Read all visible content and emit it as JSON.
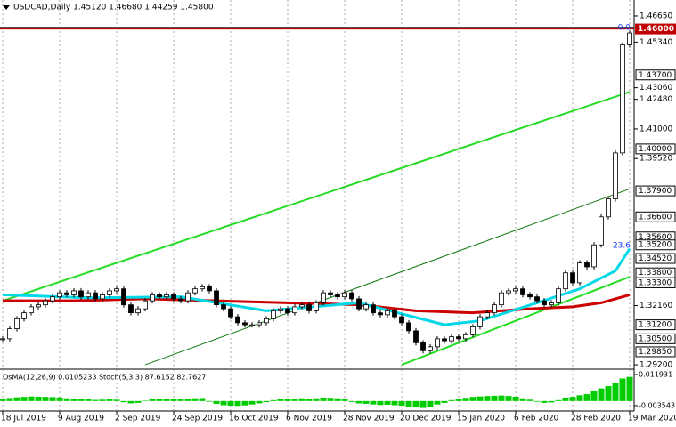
{
  "chart_data": {
    "type": "candlestick",
    "title": "USDCAD,Daily  1.45120 1.46680 1.44259 1.45800",
    "categories": [
      "18 Jul 2019",
      null,
      null,
      null,
      null,
      null,
      null,
      null,
      "9 Aug 2019",
      null,
      null,
      null,
      null,
      null,
      null,
      null,
      "2 Sep 2019",
      null,
      null,
      null,
      null,
      null,
      null,
      null,
      "24 Sep 2019",
      null,
      null,
      null,
      null,
      null,
      null,
      null,
      "16 Oct 2019",
      null,
      null,
      null,
      null,
      null,
      null,
      null,
      "6 Nov 2019",
      null,
      null,
      null,
      null,
      null,
      null,
      null,
      "28 Nov 2019",
      null,
      null,
      null,
      null,
      null,
      null,
      null,
      "20 Dec 2019",
      null,
      null,
      null,
      null,
      null,
      null,
      null,
      "15 Jan 2020",
      null,
      null,
      null,
      null,
      null,
      null,
      null,
      "6 Feb 2020",
      null,
      null,
      null,
      null,
      null,
      null,
      null,
      "28 Feb 2020",
      null,
      null,
      null,
      null,
      null,
      null,
      null,
      "19 Mar 2020"
    ],
    "values": [
      1.305,
      1.31,
      1.315,
      1.318,
      1.321,
      1.322,
      1.324,
      1.326,
      1.328,
      1.327,
      1.329,
      1.326,
      1.328,
      1.325,
      1.327,
      1.329,
      1.33,
      1.322,
      1.318,
      1.32,
      1.324,
      1.327,
      1.326,
      1.327,
      1.325,
      1.324,
      1.328,
      1.33,
      1.331,
      1.329,
      1.322,
      1.32,
      1.316,
      1.313,
      1.312,
      1.312,
      1.313,
      1.315,
      1.319,
      1.32,
      1.318,
      1.321,
      1.322,
      1.319,
      1.323,
      1.328,
      1.327,
      1.326,
      1.328,
      1.325,
      1.32,
      1.322,
      1.318,
      1.317,
      1.319,
      1.316,
      1.313,
      1.309,
      1.303,
      1.299,
      1.301,
      1.305,
      1.304,
      1.306,
      1.305,
      1.307,
      1.311,
      1.316,
      1.318,
      1.322,
      1.328,
      1.329,
      1.33,
      1.327,
      1.326,
      1.324,
      1.322,
      1.323,
      1.33,
      1.338,
      1.333,
      1.343,
      1.341,
      1.352,
      1.366,
      1.375,
      1.398,
      1.452,
      1.458
    ],
    "ylim": [
      1.2898,
      1.4745
    ],
    "yticks": [
      {
        "value": 1.4665,
        "label": "1.46650"
      },
      {
        "value": 1.4534,
        "label": "1.45340"
      },
      {
        "value": 1.4306,
        "label": "1.43060"
      },
      {
        "value": 1.4248,
        "label": "1.42480"
      },
      {
        "value": 1.41,
        "label": "1.41000"
      },
      {
        "value": 1.3952,
        "label": "1.39520"
      },
      {
        "value": 1.3216,
        "label": "1.32160"
      },
      {
        "value": 1.292,
        "label": "1.29200"
      }
    ],
    "levels": [
      {
        "value": 1.437,
        "label": "1.43700"
      },
      {
        "value": 1.4,
        "label": "1.40000"
      },
      {
        "value": 1.379,
        "label": "1.37900"
      },
      {
        "value": 1.366,
        "label": "1.36600"
      },
      {
        "value": 1.356,
        "label": "1.35600"
      },
      {
        "value": 1.352,
        "label": "1.35200"
      },
      {
        "value": 1.3452,
        "label": "1.34520"
      },
      {
        "value": 1.338,
        "label": "1.33800"
      },
      {
        "value": 1.333,
        "label": "1.33300"
      },
      {
        "value": 1.312,
        "label": "1.31200"
      },
      {
        "value": 1.305,
        "label": "1.30500"
      },
      {
        "value": 1.2985,
        "label": "1.29850"
      }
    ],
    "current_level": {
      "value": 1.46,
      "label": "1.46000",
      "color": "#c00000"
    },
    "fib_labels": [
      {
        "value": 1.458,
        "label": "0.0"
      },
      {
        "value": 1.349,
        "label": "23.6"
      }
    ],
    "overlays": [
      {
        "color": "#cc0000",
        "x": [
          0,
          10,
          20,
          30,
          40,
          50,
          58,
          66,
          74,
          80,
          84,
          88
        ],
        "values": [
          1.324,
          1.324,
          1.325,
          1.324,
          1.323,
          1.322,
          1.319,
          1.318,
          1.32,
          1.321,
          1.323,
          1.327
        ]
      },
      {
        "color": "#00d8e8",
        "x": [
          0,
          12,
          25,
          37,
          50,
          62,
          67,
          75,
          81,
          86,
          88
        ],
        "values": [
          1.327,
          1.3255,
          1.326,
          1.319,
          1.323,
          1.312,
          1.314,
          1.323,
          1.33,
          1.339,
          1.35
        ]
      }
    ],
    "trendlines": [
      {
        "color": "#22dd22",
        "x": [
          0,
          88
        ],
        "values": [
          1.324,
          1.4285
        ]
      },
      {
        "color": "#22dd22",
        "x": [
          56,
          88
        ],
        "values": [
          1.292,
          1.336
        ]
      },
      {
        "color": "#117711",
        "x": [
          20,
          88
        ],
        "values": [
          1.292,
          1.38
        ]
      }
    ],
    "indicator": {
      "title": "OsMA(12,26,9) 0.0105233  Stoch(5,3,3) 87.6152 82.7627",
      "color": "#00cc00",
      "ylim": [
        -0.003543,
        0.011931
      ],
      "yticks": [
        {
          "value": 0.011931,
          "label": "0.011931"
        },
        {
          "value": -0.003543,
          "label": "-0.003543"
        }
      ],
      "values": [
        0.001,
        0.0013,
        0.0016,
        0.0018,
        0.002,
        0.0019,
        0.0018,
        0.0017,
        0.0016,
        0.0012,
        0.001,
        0.0008,
        0.0007,
        0.0005,
        0.0006,
        0.0007,
        0.0006,
        -0.0005,
        -0.001,
        -0.0008,
        0.0002,
        0.0008,
        0.001,
        0.0011,
        0.0009,
        0.0008,
        0.001,
        0.0012,
        0.0013,
        -0.0003,
        -0.0012,
        -0.0018,
        -0.002,
        -0.0021,
        -0.0019,
        -0.0015,
        -0.001,
        -0.0005,
        0.0004,
        0.0008,
        0.0009,
        0.0011,
        0.0012,
        0.001,
        0.0012,
        0.0015,
        0.0014,
        0.0012,
        0.001,
        -0.0004,
        -0.001,
        -0.0012,
        -0.0015,
        -0.0017,
        -0.0016,
        -0.0018,
        -0.002,
        -0.0024,
        -0.0028,
        -0.003,
        -0.0025,
        -0.0015,
        -0.0008,
        0.0004,
        0.0009,
        0.0014,
        0.0018,
        0.002,
        0.0022,
        0.0023,
        0.0024,
        0.0022,
        0.0019,
        0.0012,
        0.0006,
        -0.0003,
        -0.0008,
        -0.0006,
        0.0004,
        0.0015,
        0.0018,
        0.0025,
        0.003,
        0.0042,
        0.0055,
        0.0065,
        0.008,
        0.0098,
        0.0105
      ]
    }
  }
}
